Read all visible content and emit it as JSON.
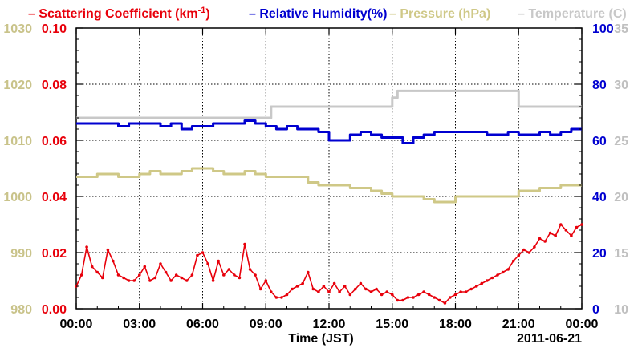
{
  "chart_data": {
    "type": "line",
    "title": "",
    "xlabel": "Time (JST)",
    "date_label": "2011-06-21",
    "x_ticks": [
      "00:00",
      "03:00",
      "06:00",
      "09:00",
      "12:00",
      "15:00",
      "18:00",
      "21:00",
      "00:00"
    ],
    "xlim_hours": [
      0,
      24
    ],
    "grid": true,
    "legend_position": "top",
    "legend": [
      {
        "series": "scattering",
        "dash": "–",
        "text": "Scattering Coefficient (km",
        "sup": "-1",
        "close": ")"
      },
      {
        "series": "humidity",
        "dash": "–",
        "text": "Relative Humidity(%)"
      },
      {
        "series": "pressure",
        "dash": "–",
        "text": "Pressure (hPa)"
      },
      {
        "series": "temperature",
        "dash": "–",
        "text": "Temperature (C)"
      }
    ],
    "axes": {
      "scattering": {
        "side": "left-inner",
        "min": 0,
        "max": 0.1,
        "ticks": [
          "0.00",
          "0.02",
          "0.04",
          "0.06",
          "0.08",
          "0.10"
        ]
      },
      "pressure": {
        "side": "left-outer",
        "min": 980,
        "max": 1030,
        "ticks": [
          "980",
          "990",
          "1000",
          "1010",
          "1020",
          "1030"
        ]
      },
      "humidity": {
        "side": "right-inner",
        "min": 0,
        "max": 100,
        "ticks": [
          "0",
          "20",
          "40",
          "60",
          "80",
          "100"
        ]
      },
      "temperature": {
        "side": "right-outer",
        "min": 10,
        "max": 35,
        "ticks": [
          "10",
          "15",
          "20",
          "25",
          "30",
          "35"
        ]
      }
    },
    "colors": {
      "scattering": "#e8000b",
      "humidity": "#0000d0",
      "pressure": "#cfc887",
      "temperature": "#c8c8c8",
      "pressure_axis_text": "#c9c38a",
      "temperature_axis_text": "#c0c0c0"
    },
    "series": [
      {
        "key": "scattering",
        "name": "Scattering Coefficient",
        "unit": "km-1",
        "step": false,
        "markers": true,
        "x": [
          0.0,
          0.25,
          0.5,
          0.75,
          1.0,
          1.25,
          1.5,
          1.75,
          2.0,
          2.25,
          2.5,
          2.75,
          3.0,
          3.25,
          3.5,
          3.75,
          4.0,
          4.25,
          4.5,
          4.75,
          5.0,
          5.25,
          5.5,
          5.75,
          6.0,
          6.25,
          6.5,
          6.75,
          7.0,
          7.25,
          7.5,
          7.75,
          8.0,
          8.25,
          8.5,
          8.75,
          9.0,
          9.25,
          9.5,
          9.75,
          10.0,
          10.25,
          10.5,
          10.75,
          11.0,
          11.25,
          11.5,
          11.75,
          12.0,
          12.25,
          12.5,
          12.75,
          13.0,
          13.25,
          13.5,
          13.75,
          14.0,
          14.25,
          14.5,
          14.75,
          15.0,
          15.25,
          15.5,
          15.75,
          16.0,
          16.25,
          16.5,
          16.75,
          17.0,
          17.25,
          17.5,
          17.75,
          18.0,
          18.25,
          18.5,
          18.75,
          19.0,
          19.25,
          19.5,
          19.75,
          20.0,
          20.25,
          20.5,
          20.75,
          21.0,
          21.25,
          21.5,
          21.75,
          22.0,
          22.25,
          22.5,
          22.75,
          23.0,
          23.25,
          23.5,
          23.75,
          24.0
        ],
        "y": [
          0.008,
          0.012,
          0.022,
          0.015,
          0.013,
          0.011,
          0.021,
          0.017,
          0.012,
          0.011,
          0.01,
          0.01,
          0.012,
          0.015,
          0.01,
          0.011,
          0.016,
          0.013,
          0.01,
          0.012,
          0.011,
          0.01,
          0.012,
          0.019,
          0.02,
          0.016,
          0.01,
          0.017,
          0.012,
          0.014,
          0.012,
          0.011,
          0.023,
          0.014,
          0.012,
          0.007,
          0.01,
          0.006,
          0.004,
          0.004,
          0.005,
          0.007,
          0.008,
          0.009,
          0.013,
          0.007,
          0.006,
          0.008,
          0.006,
          0.009,
          0.006,
          0.008,
          0.005,
          0.007,
          0.009,
          0.007,
          0.006,
          0.007,
          0.005,
          0.006,
          0.005,
          0.003,
          0.003,
          0.004,
          0.004,
          0.005,
          0.006,
          0.005,
          0.004,
          0.003,
          0.002,
          0.004,
          0.005,
          0.006,
          0.006,
          0.007,
          0.008,
          0.009,
          0.01,
          0.011,
          0.012,
          0.013,
          0.014,
          0.017,
          0.019,
          0.021,
          0.02,
          0.022,
          0.025,
          0.024,
          0.027,
          0.026,
          0.03,
          0.028,
          0.026,
          0.029,
          0.03
        ]
      },
      {
        "key": "humidity",
        "name": "Relative Humidity",
        "unit": "%",
        "step": true,
        "x": [
          0,
          1.0,
          2.0,
          2.5,
          3.0,
          4.0,
          4.5,
          5.0,
          5.5,
          6.0,
          6.5,
          7.0,
          7.5,
          8.0,
          8.5,
          9.0,
          9.5,
          10.0,
          10.5,
          11.0,
          11.5,
          12.0,
          12.5,
          13.0,
          13.5,
          14.0,
          14.5,
          15.0,
          15.5,
          16.0,
          16.5,
          17.0,
          18.0,
          19.0,
          19.5,
          20.0,
          20.5,
          21.0,
          21.5,
          22.0,
          22.5,
          23.0,
          23.5,
          24.0
        ],
        "y": [
          66,
          66,
          65,
          66,
          66,
          65,
          66,
          64,
          65,
          65,
          66,
          66,
          66,
          67,
          66,
          65,
          64,
          65,
          64,
          64,
          63,
          60,
          60,
          62,
          63,
          62,
          61,
          61,
          59,
          61,
          62,
          63,
          63,
          63,
          62,
          62,
          63,
          62,
          62,
          63,
          62,
          63,
          64,
          64
        ]
      },
      {
        "key": "pressure",
        "name": "Pressure",
        "unit": "hPa",
        "step": true,
        "x": [
          0,
          1.0,
          2.0,
          3.0,
          3.5,
          4.0,
          5.0,
          5.5,
          6.0,
          6.5,
          7.0,
          8.0,
          8.5,
          9.0,
          10.0,
          11.0,
          11.5,
          12.0,
          13.0,
          14.0,
          14.5,
          15.0,
          16.0,
          16.5,
          17.0,
          17.5,
          18.0,
          19.0,
          20.0,
          21.0,
          21.5,
          22.0,
          23.0,
          24.0
        ],
        "y": [
          1003.5,
          1004,
          1003.5,
          1004,
          1004.5,
          1004,
          1004.5,
          1005,
          1005,
          1004.5,
          1004,
          1004.5,
          1004,
          1003.5,
          1003.5,
          1002.5,
          1002,
          1002,
          1001.5,
          1001,
          1000.5,
          1000,
          1000,
          999.5,
          999,
          999,
          1000,
          1000,
          1000,
          1001,
          1001,
          1001.5,
          1002,
          1002
        ]
      },
      {
        "key": "temperature",
        "name": "Temperature",
        "unit": "C",
        "step": true,
        "x": [
          0,
          9.25,
          15.0,
          15.25,
          21.0,
          24.0
        ],
        "y": [
          27.0,
          28.0,
          28.8,
          29.4,
          28.0,
          28.0
        ]
      }
    ]
  }
}
